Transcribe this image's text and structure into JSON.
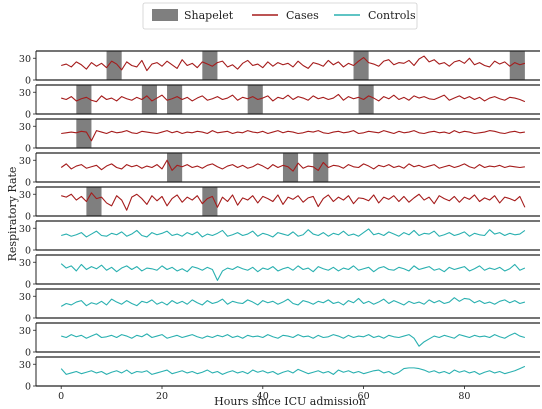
{
  "chart_data": {
    "type": "line",
    "xlabel": "Hours since ICU admission",
    "ylabel": "Respiratory Rate",
    "xlim": [
      -5,
      95
    ],
    "ylim": [
      0,
      40
    ],
    "x_ticks": [
      0,
      20,
      40,
      60,
      80
    ],
    "y_ticks": [
      0,
      30
    ],
    "legend": [
      {
        "label": "Shapelet",
        "kind": "patch",
        "color": "#7f7f7f"
      },
      {
        "label": "Cases",
        "kind": "line",
        "color": "#a51c1c"
      },
      {
        "label": "Controls",
        "kind": "line",
        "color": "#2ab0b0"
      }
    ],
    "legend_position": "top-center",
    "panels": [
      {
        "group": "Cases",
        "values": [
          20,
          22,
          18,
          25,
          21,
          15,
          24,
          19,
          23,
          17,
          26,
          22,
          14,
          25,
          20,
          18,
          27,
          13,
          22,
          24,
          19,
          26,
          21,
          16,
          28,
          20,
          23,
          17,
          25,
          22,
          19,
          24,
          26,
          18,
          21,
          15,
          23,
          27,
          20,
          22,
          17,
          25,
          19,
          24,
          21,
          23,
          18,
          26,
          20,
          16,
          24,
          22,
          19,
          27,
          21,
          25,
          18,
          23,
          20,
          26,
          31,
          24,
          22,
          19,
          26,
          28,
          21,
          24,
          23,
          27,
          20,
          29,
          33,
          25,
          28,
          22,
          24,
          19,
          25,
          27,
          23,
          30,
          21,
          24,
          20,
          18,
          26,
          22,
          25,
          19,
          24,
          21,
          23
        ],
        "shapelets": [
          [
            9,
            12
          ],
          [
            28,
            31
          ],
          [
            58,
            61
          ],
          [
            89,
            92
          ]
        ]
      },
      {
        "group": "Cases",
        "values": [
          22,
          20,
          24,
          18,
          21,
          23,
          19,
          17,
          25,
          20,
          22,
          18,
          24,
          21,
          19,
          23,
          20,
          25,
          18,
          22,
          26,
          19,
          21,
          24,
          20,
          23,
          18,
          22,
          25,
          19,
          21,
          24,
          20,
          22,
          26,
          19,
          23,
          21,
          24,
          20,
          22,
          25,
          18,
          23,
          21,
          26,
          20,
          24,
          22,
          19,
          25,
          21,
          23,
          20,
          22,
          27,
          19,
          24,
          21,
          23,
          20,
          25,
          22,
          18,
          24,
          21,
          26,
          20,
          23,
          19,
          25,
          22,
          24,
          21,
          20,
          23,
          26,
          19,
          22,
          25,
          21,
          24,
          20,
          23,
          18,
          22,
          24,
          21,
          19,
          23,
          22,
          20,
          17
        ],
        "shapelets": [
          [
            3,
            6
          ],
          [
            16,
            19
          ],
          [
            21,
            24
          ],
          [
            37,
            40
          ],
          [
            59,
            62
          ]
        ]
      },
      {
        "group": "Cases",
        "values": [
          20,
          21,
          22,
          21,
          23,
          22,
          10,
          24,
          22,
          20,
          23,
          21,
          22,
          24,
          21,
          20,
          23,
          22,
          21,
          20,
          22,
          24,
          21,
          23,
          20,
          22,
          21,
          23,
          22,
          20,
          24,
          21,
          22,
          23,
          20,
          22,
          21,
          24,
          22,
          21,
          23,
          20,
          22,
          24,
          21,
          23,
          22,
          20,
          21,
          23,
          22,
          24,
          21,
          20,
          22,
          23,
          21,
          22,
          24,
          20,
          21,
          23,
          22,
          21,
          24,
          22,
          20,
          23,
          21,
          22,
          24,
          21,
          20,
          22,
          23,
          21,
          22,
          20,
          24,
          21,
          23,
          22,
          20,
          21,
          22,
          24,
          23,
          21,
          20,
          22,
          23,
          21,
          22
        ],
        "shapelets": [
          [
            3,
            6
          ]
        ]
      },
      {
        "group": "Cases",
        "values": [
          20,
          25,
          18,
          22,
          24,
          19,
          21,
          23,
          17,
          22,
          25,
          20,
          18,
          24,
          21,
          23,
          19,
          22,
          20,
          24,
          18,
          30,
          16,
          23,
          21,
          24,
          20,
          22,
          19,
          23,
          25,
          21,
          18,
          22,
          24,
          20,
          23,
          19,
          21,
          25,
          22,
          18,
          24,
          20,
          23,
          21,
          15,
          26,
          19,
          22,
          21,
          16,
          27,
          20,
          23,
          22,
          19,
          24,
          21,
          20,
          25,
          22,
          18,
          23,
          21,
          24,
          20,
          22,
          19,
          25,
          21,
          23,
          20,
          22,
          24,
          19,
          21,
          23,
          20,
          22,
          25,
          21,
          19,
          24,
          20,
          22,
          21,
          23,
          20,
          22,
          21,
          20,
          21
        ],
        "shapelets": [
          [
            21,
            24
          ],
          [
            44,
            47
          ],
          [
            50,
            53
          ]
        ]
      },
      {
        "group": "Cases",
        "values": [
          28,
          26,
          30,
          22,
          27,
          20,
          32,
          24,
          26,
          18,
          14,
          28,
          22,
          8,
          26,
          30,
          24,
          16,
          28,
          21,
          27,
          14,
          24,
          29,
          19,
          26,
          22,
          28,
          17,
          24,
          27,
          12,
          26,
          20,
          29,
          15,
          25,
          22,
          28,
          18,
          27,
          24,
          20,
          29,
          16,
          26,
          23,
          28,
          19,
          25,
          27,
          13,
          24,
          29,
          20,
          26,
          22,
          28,
          17,
          25,
          24,
          21,
          29,
          18,
          26,
          23,
          28,
          20,
          27,
          19,
          25,
          30,
          22,
          26,
          17,
          28,
          24,
          21,
          27,
          19,
          26,
          23,
          29,
          20,
          25,
          22,
          28,
          18,
          26,
          24,
          21,
          27,
          12
        ],
        "shapelets": [
          [
            5,
            8
          ],
          [
            28,
            31
          ]
        ]
      },
      {
        "group": "Controls",
        "values": [
          20,
          22,
          19,
          21,
          24,
          18,
          22,
          26,
          20,
          19,
          23,
          21,
          25,
          19,
          22,
          27,
          20,
          18,
          24,
          21,
          23,
          26,
          20,
          22,
          19,
          24,
          21,
          25,
          18,
          22,
          20,
          23,
          27,
          19,
          21,
          24,
          20,
          22,
          26,
          19,
          23,
          21,
          18,
          24,
          22,
          20,
          25,
          19,
          21,
          28,
          22,
          20,
          24,
          19,
          23,
          21,
          26,
          20,
          22,
          19,
          24,
          29,
          21,
          23,
          20,
          25,
          22,
          19,
          24,
          21,
          27,
          20,
          23,
          22,
          26,
          19,
          21,
          24,
          20,
          22,
          25,
          19,
          23,
          21,
          20,
          28,
          22,
          24,
          20,
          23,
          21,
          22,
          27
        ],
        "shapelets": []
      },
      {
        "group": "Controls",
        "values": [
          28,
          22,
          25,
          18,
          27,
          20,
          24,
          21,
          26,
          19,
          23,
          17,
          22,
          25,
          20,
          24,
          18,
          22,
          21,
          19,
          25,
          20,
          23,
          18,
          21,
          17,
          24,
          22,
          19,
          23,
          20,
          5,
          18,
          22,
          20,
          24,
          21,
          19,
          23,
          17,
          22,
          20,
          24,
          18,
          21,
          23,
          19,
          25,
          20,
          22,
          17,
          24,
          21,
          19,
          23,
          18,
          22,
          20,
          25,
          19,
          21,
          23,
          17,
          22,
          24,
          20,
          19,
          23,
          21,
          18,
          25,
          20,
          22,
          24,
          19,
          21,
          17,
          23,
          20,
          22,
          24,
          18,
          21,
          25,
          19,
          22,
          20,
          23,
          18,
          21,
          27,
          19,
          22
        ],
        "shapelets": []
      },
      {
        "group": "Controls",
        "values": [
          16,
          20,
          18,
          22,
          24,
          17,
          21,
          19,
          23,
          18,
          26,
          22,
          19,
          24,
          20,
          17,
          23,
          21,
          25,
          19,
          22,
          18,
          24,
          20,
          23,
          19,
          25,
          21,
          18,
          24,
          20,
          22,
          26,
          19,
          23,
          21,
          20,
          25,
          22,
          18,
          24,
          21,
          23,
          19,
          22,
          26,
          20,
          18,
          24,
          22,
          19,
          23,
          21,
          25,
          20,
          22,
          18,
          24,
          21,
          27,
          20,
          23,
          19,
          22,
          26,
          20,
          24,
          21,
          18,
          23,
          20,
          22,
          19,
          25,
          21,
          24,
          20,
          22,
          28,
          23,
          27,
          26,
          21,
          24,
          20,
          22,
          19,
          23,
          25,
          21,
          24,
          20,
          22
        ],
        "shapelets": []
      },
      {
        "group": "Controls",
        "values": [
          22,
          20,
          24,
          21,
          23,
          19,
          22,
          25,
          20,
          21,
          23,
          20,
          24,
          22,
          19,
          23,
          21,
          25,
          20,
          22,
          24,
          19,
          21,
          23,
          20,
          22,
          24,
          21,
          19,
          22,
          20,
          23,
          21,
          24,
          20,
          22,
          19,
          23,
          21,
          22,
          20,
          24,
          21,
          19,
          23,
          22,
          20,
          24,
          21,
          22,
          19,
          23,
          20,
          21,
          24,
          22,
          19,
          23,
          20,
          22,
          21,
          24,
          20,
          22,
          19,
          23,
          21,
          20,
          22,
          24,
          19,
          8,
          14,
          18,
          22,
          20,
          23,
          21,
          19,
          24,
          22,
          20,
          23,
          21,
          22,
          20,
          24,
          21,
          19,
          23,
          26,
          22,
          20
        ],
        "shapelets": []
      },
      {
        "group": "Controls",
        "values": [
          24,
          16,
          18,
          20,
          17,
          19,
          21,
          18,
          20,
          16,
          19,
          21,
          18,
          22,
          17,
          20,
          19,
          21,
          16,
          18,
          20,
          22,
          17,
          19,
          21,
          18,
          20,
          17,
          19,
          22,
          18,
          20,
          16,
          19,
          21,
          18,
          20,
          17,
          22,
          19,
          21,
          18,
          20,
          16,
          19,
          21,
          18,
          23,
          20,
          17,
          19,
          21,
          18,
          20,
          16,
          22,
          19,
          21,
          18,
          20,
          17,
          19,
          21,
          22,
          18,
          20,
          16,
          19,
          24,
          25,
          25,
          24,
          22,
          19,
          21,
          18,
          20,
          17,
          22,
          19,
          21,
          18,
          20,
          16,
          19,
          21,
          18,
          20,
          17,
          19,
          21,
          24,
          27
        ],
        "shapelets": []
      }
    ]
  }
}
